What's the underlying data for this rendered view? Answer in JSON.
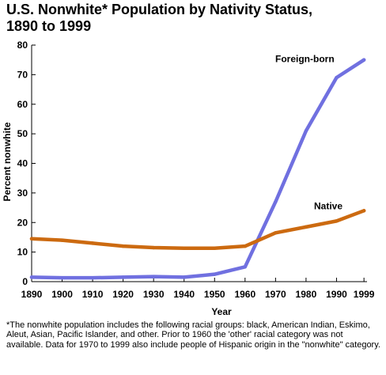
{
  "chart_data": {
    "type": "line",
    "title_line1": "U.S. Nonwhite* Population by Nativity Status,",
    "title_line2": "1890 to 1999",
    "xlabel": "Year",
    "ylabel": "Percent nonwhite",
    "ylim": [
      0,
      80
    ],
    "yticks": [
      "0",
      "10",
      "20",
      "30",
      "40",
      "50",
      "60",
      "70",
      "80"
    ],
    "categories": [
      "1890",
      "1900",
      "1910",
      "1920",
      "1930",
      "1940",
      "1950",
      "1960",
      "1970",
      "1980",
      "1990",
      "1999"
    ],
    "x": [
      1890,
      1900,
      1910,
      1920,
      1930,
      1940,
      1950,
      1960,
      1970,
      1980,
      1990,
      1999
    ],
    "grid": false,
    "legend": "none (series labeled directly)",
    "series": [
      {
        "name": "Foreign-born",
        "color": "#7070e0",
        "values": [
          1.5,
          1.3,
          1.3,
          1.5,
          1.7,
          1.5,
          2.5,
          5,
          27,
          51,
          69,
          75
        ]
      },
      {
        "name": "Native",
        "color": "#cc6a10",
        "values": [
          14.5,
          14,
          13,
          12,
          11.5,
          11.3,
          11.3,
          12,
          16.5,
          18.5,
          20.5,
          24
        ]
      }
    ]
  },
  "footnote": "*The nonwhite population includes the following racial groups: black, American Indian, Eskimo, Aleut, Asian, Pacific Islander, and other.  Prior to 1960 the 'other' racial category was not available.  Data for 1970 to 1999 also include people of Hispanic origin in the \"nonwhite\" category."
}
